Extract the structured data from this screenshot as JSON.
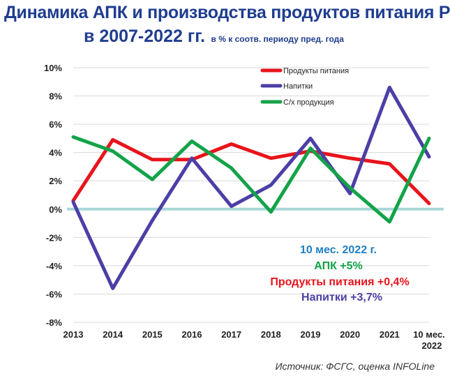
{
  "title": {
    "line1": "Динамика АПК и производства продуктов питания РФ",
    "line2": "в 2007-2022 гг.",
    "line2_note": "в % к соотв. периоду пред. года"
  },
  "source": "Источник: ФСГС, оценка INFOLine",
  "annotations": {
    "period": "10 мес. 2022 г.",
    "apk": "АПК +5%",
    "food": "Продукты питания +0,4%",
    "drinks": "Напитки +3,7%"
  },
  "chart_data": {
    "type": "line",
    "categories": [
      "2013",
      "2014",
      "2015",
      "2016",
      "2017",
      "2018",
      "2019",
      "2020",
      "2021",
      "10 мес.\n2022"
    ],
    "y_ticks": [
      "10%",
      "8%",
      "6%",
      "4%",
      "2%",
      "0%",
      "-2%",
      "-4%",
      "-6%",
      "-8%"
    ],
    "ylim": [
      -8,
      10
    ],
    "grid": true,
    "legend_position": "top-right",
    "series": [
      {
        "name": "Продукты питания",
        "color": "#e8141b",
        "values": [
          0.6,
          4.9,
          3.5,
          3.5,
          4.6,
          3.6,
          4.1,
          3.6,
          3.2,
          0.4
        ]
      },
      {
        "name": "Напитки",
        "color": "#4b3fa6",
        "values": [
          0.5,
          -5.6,
          -0.8,
          3.6,
          0.2,
          1.7,
          5.0,
          1.1,
          8.6,
          3.7
        ]
      },
      {
        "name": "С/х продукция",
        "color": "#13a348",
        "values": [
          5.1,
          4.1,
          2.1,
          4.8,
          2.9,
          -0.2,
          4.3,
          1.5,
          -0.9,
          5.0
        ]
      }
    ]
  }
}
